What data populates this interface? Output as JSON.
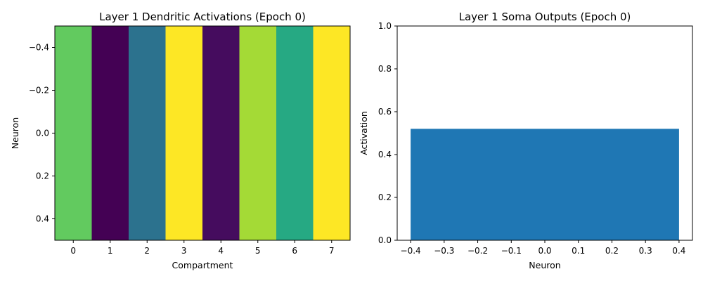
{
  "chart_data": [
    {
      "type": "heatmap",
      "title": "Layer 1 Dendritic Activations (Epoch 0)",
      "xlabel": "Compartment",
      "ylabel": "Neuron",
      "colormap": "viridis",
      "x_ticks": [
        "0",
        "1",
        "2",
        "3",
        "4",
        "5",
        "6",
        "7"
      ],
      "y_ticks": [
        "−0.4",
        "−0.2",
        "0.0",
        "0.2",
        "0.4"
      ],
      "y_tick_values": [
        -0.4,
        -0.2,
        0.0,
        0.2,
        0.4
      ],
      "ylim": [
        -0.5,
        0.5
      ],
      "y_inverted": true,
      "values": [
        [
          0.76,
          0.0,
          0.38,
          1.0,
          0.04,
          0.87,
          0.61,
          1.0
        ]
      ]
    },
    {
      "type": "bar",
      "title": "Layer 1 Soma Outputs (Epoch 0)",
      "xlabel": "Neuron",
      "ylabel": "Activation",
      "categories": [
        0
      ],
      "values": [
        0.52
      ],
      "bar_width": 0.8,
      "bar_color": "#1f77b4",
      "xlim": [
        -0.44,
        0.44
      ],
      "ylim": [
        0,
        1
      ],
      "x_ticks": [
        "−0.4",
        "−0.3",
        "−0.2",
        "−0.1",
        "0.0",
        "0.1",
        "0.2",
        "0.3",
        "0.4"
      ],
      "x_tick_values": [
        -0.4,
        -0.3,
        -0.2,
        -0.1,
        0.0,
        0.1,
        0.2,
        0.3,
        0.4
      ],
      "y_ticks": [
        "0.0",
        "0.2",
        "0.4",
        "0.6",
        "0.8",
        "1.0"
      ],
      "y_tick_values": [
        0.0,
        0.2,
        0.4,
        0.6,
        0.8,
        1.0
      ]
    }
  ]
}
